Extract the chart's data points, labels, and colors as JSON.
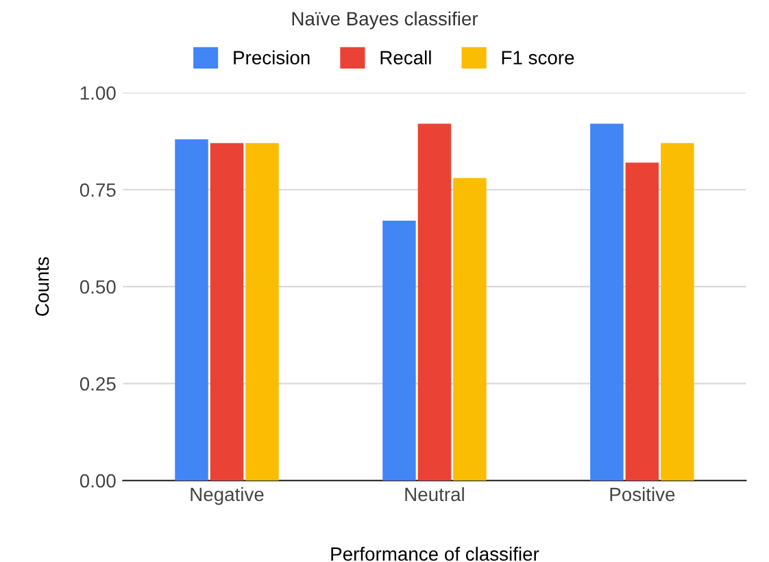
{
  "chart_data": {
    "type": "bar",
    "title": "Naïve Bayes classifier",
    "xlabel": "Performance of classifier",
    "ylabel": "Counts",
    "categories": [
      "Negative",
      "Neutral",
      "Positive"
    ],
    "series": [
      {
        "name": "Precision",
        "color": "#4285f4",
        "values": [
          0.88,
          0.67,
          0.92
        ]
      },
      {
        "name": "Recall",
        "color": "#ea4335",
        "values": [
          0.87,
          0.92,
          0.82
        ]
      },
      {
        "name": "F1 score",
        "color": "#fbbc04",
        "values": [
          0.87,
          0.78,
          0.87
        ]
      }
    ],
    "ylim": [
      0,
      1
    ],
    "yticks": [
      {
        "value": 0,
        "label": "0.00"
      },
      {
        "value": 0.25,
        "label": "0.25"
      },
      {
        "value": 0.5,
        "label": "0.50"
      },
      {
        "value": 0.75,
        "label": "0.75"
      },
      {
        "value": 1,
        "label": "1.00"
      }
    ],
    "grid": "y",
    "legend": "top"
  }
}
